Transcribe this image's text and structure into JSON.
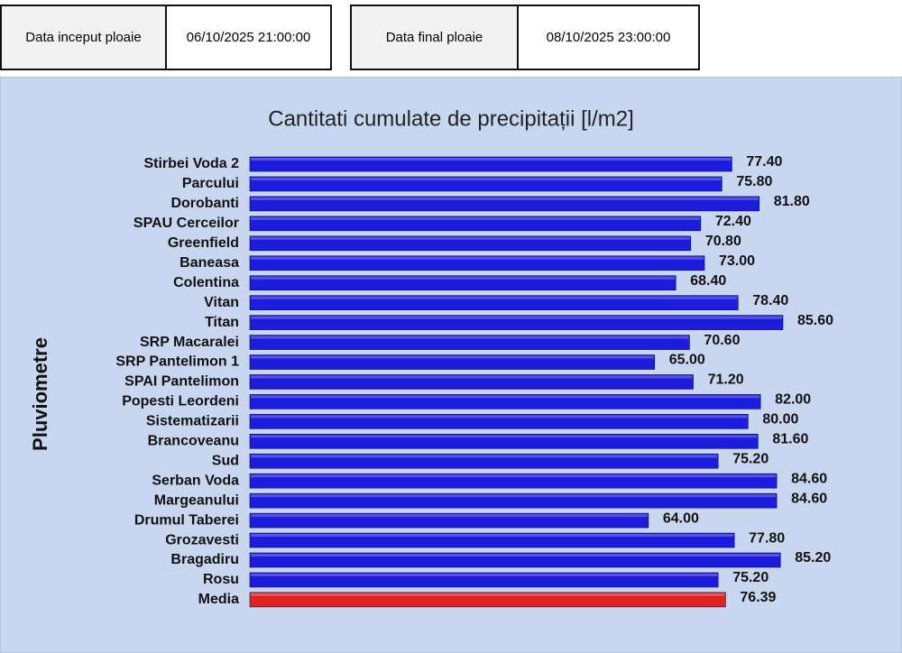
{
  "header": {
    "start_label": "Data inceput ploaie",
    "start_value": "06/10/2025 21:00:00",
    "end_label": "Data final ploaie",
    "end_value": "08/10/2025 23:00:00"
  },
  "chart_data": {
    "type": "bar",
    "orientation": "horizontal",
    "title": "Cantitati  cumulate  de  precipitații  [l/m2]",
    "y_label": "Pluviometre",
    "categories": [
      "Stirbei Voda 2",
      "Parcului",
      "Dorobanti",
      "SPAU Cerceilor",
      "Greenfield",
      "Baneasa",
      "Colentina",
      "Vitan",
      "Titan",
      "SRP Macaralei",
      "SRP Pantelimon 1",
      "SPAI Pantelimon",
      "Popesti Leordeni",
      "Sistematizarii",
      "Brancoveanu",
      "Sud",
      "Serban Voda",
      "Margeanului",
      "Drumul Taberei",
      "Grozavesti",
      "Bragadiru",
      "Rosu",
      "Media"
    ],
    "values": [
      77.4,
      75.8,
      81.8,
      72.4,
      70.8,
      73.0,
      68.4,
      78.4,
      85.6,
      70.6,
      65.0,
      71.2,
      82.0,
      80.0,
      81.6,
      75.2,
      84.6,
      84.6,
      64.0,
      77.8,
      85.2,
      75.2,
      76.39
    ],
    "value_labels": [
      "77.40",
      "75.80",
      "81.80",
      "72.40",
      "70.80",
      "73.00",
      "68.40",
      "78.40",
      "85.60",
      "70.60",
      "65.00",
      "71.20",
      "82.00",
      "80.00",
      "81.60",
      "75.20",
      "84.60",
      "84.60",
      "64.00",
      "77.80",
      "85.20",
      "75.20",
      "76.39"
    ],
    "colors": [
      "#1c1cdc",
      "#1c1cdc",
      "#1c1cdc",
      "#1c1cdc",
      "#1c1cdc",
      "#1c1cdc",
      "#1c1cdc",
      "#1c1cdc",
      "#1c1cdc",
      "#1c1cdc",
      "#1c1cdc",
      "#1c1cdc",
      "#1c1cdc",
      "#1c1cdc",
      "#1c1cdc",
      "#1c1cdc",
      "#1c1cdc",
      "#1c1cdc",
      "#1c1cdc",
      "#1c1cdc",
      "#1c1cdc",
      "#1c1cdc",
      "#e0221c"
    ]
  }
}
